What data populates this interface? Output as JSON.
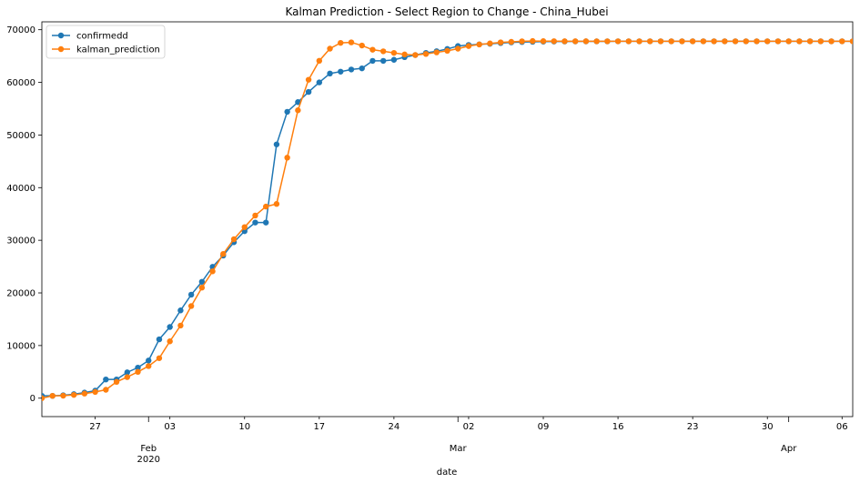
{
  "chart_data": {
    "type": "line",
    "title": "Kalman Prediction - Select Region to Change - China_Hubei",
    "xlabel": "date",
    "ylabel": "",
    "x_start": "2020-01-22",
    "x_end": "2020-04-07",
    "ylim": [
      -3500,
      71500
    ],
    "yticks": [
      0,
      10000,
      20000,
      30000,
      40000,
      50000,
      60000,
      70000
    ],
    "xticks_minor": [
      {
        "date": "2020-01-27",
        "label": "27"
      },
      {
        "date": "2020-02-03",
        "label": "03"
      },
      {
        "date": "2020-02-10",
        "label": "10"
      },
      {
        "date": "2020-02-17",
        "label": "17"
      },
      {
        "date": "2020-02-24",
        "label": "24"
      },
      {
        "date": "2020-03-02",
        "label": "02"
      },
      {
        "date": "2020-03-09",
        "label": "09"
      },
      {
        "date": "2020-03-16",
        "label": "16"
      },
      {
        "date": "2020-03-23",
        "label": "23"
      },
      {
        "date": "2020-03-30",
        "label": "30"
      },
      {
        "date": "2020-04-06",
        "label": "06"
      }
    ],
    "xticks_major": [
      {
        "date": "2020-02-01",
        "label": "Feb",
        "sublabel": "2020"
      },
      {
        "date": "2020-03-01",
        "label": "Mar",
        "sublabel": ""
      },
      {
        "date": "2020-04-01",
        "label": "Apr",
        "sublabel": ""
      }
    ],
    "legend_position": "top-left",
    "grid": false,
    "series": [
      {
        "name": "confirmedd",
        "color": "#1f77b4",
        "values": [
          444,
          444,
          549,
          761,
          1058,
          1423,
          3554,
          3554,
          4903,
          5806,
          7153,
          11177,
          13522,
          16678,
          19665,
          22112,
          24953,
          27100,
          29631,
          31728,
          33366,
          33366,
          48206,
          54406,
          56249,
          58182,
          59989,
          61682,
          62031,
          62442,
          62662,
          64084,
          64084,
          64287,
          64786,
          65187,
          65596,
          65914,
          66337,
          66907,
          67103,
          67217,
          67332,
          67466,
          67592,
          67666,
          67707,
          67743,
          67760,
          67773,
          67781,
          67786,
          67790,
          67794,
          67798,
          67799,
          67800,
          67800,
          67800,
          67800,
          67800,
          67800,
          67801,
          67801,
          67801,
          67801,
          67801,
          67801,
          67801,
          67801,
          67801,
          67801,
          67801,
          67801,
          67802,
          67802,
          67802
        ]
      },
      {
        "name": "kalman_prediction",
        "color": "#ff7f0e",
        "values": [
          0,
          444,
          472,
          620,
          870,
          1180,
          1600,
          3100,
          4000,
          5000,
          6100,
          7600,
          10800,
          13800,
          17500,
          21000,
          24100,
          27400,
          30200,
          32500,
          34700,
          36400,
          36900,
          45700,
          54700,
          60500,
          64100,
          66400,
          67500,
          67600,
          67000,
          66200,
          65900,
          65600,
          65300,
          65200,
          65400,
          65700,
          66000,
          66400,
          66900,
          67200,
          67400,
          67600,
          67700,
          67800,
          67850,
          67830,
          67820,
          67810,
          67806,
          67805,
          67804,
          67803,
          67802,
          67801,
          67800,
          67800,
          67800,
          67800,
          67800,
          67800,
          67800,
          67800,
          67800,
          67800,
          67800,
          67800,
          67800,
          67800,
          67800,
          67800,
          67800,
          67800,
          67800,
          67800,
          67800
        ]
      }
    ]
  }
}
